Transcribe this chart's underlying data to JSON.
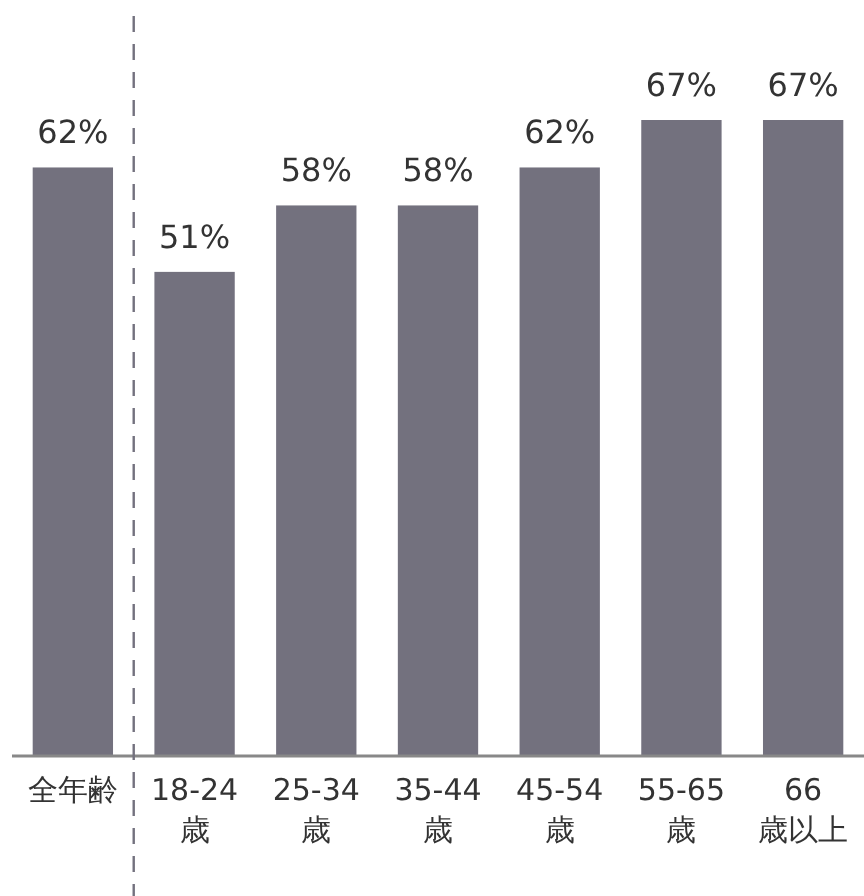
{
  "chart_data": {
    "type": "bar",
    "categories": [
      "全年齢",
      "18-24 歳",
      "25-34 歳",
      "35-44 歳",
      "45-54 歳",
      "55-65 歳",
      "66 歳以上"
    ],
    "values": [
      62,
      51,
      58,
      58,
      62,
      67,
      67
    ],
    "value_labels": [
      "62%",
      "51%",
      "58%",
      "58%",
      "62%",
      "67%",
      "67%"
    ],
    "color": "#73717e"
  }
}
